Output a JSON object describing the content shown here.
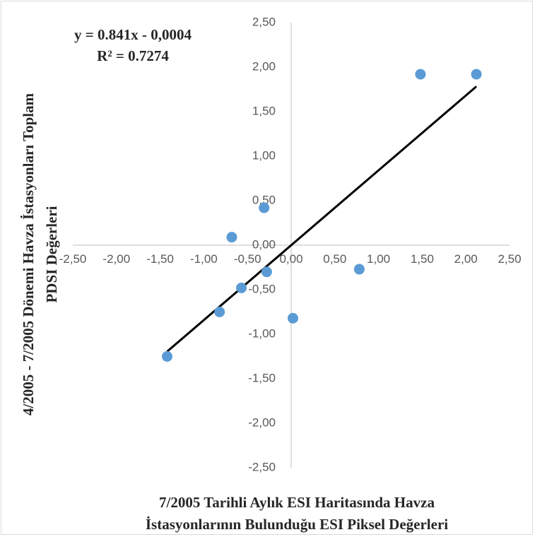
{
  "chart_data": {
    "type": "scatter",
    "xlabel_lines": [
      "7/2005 Tarihli Aylık ESI Haritasında Havza",
      "İstasyonlarının Bulunduğu ESI Piksel Değerleri"
    ],
    "ylabel_lines": [
      "4/2005 - 7/2005 Dönemi Havza İstasyonları Toplam",
      "PDSI Değerleri"
    ],
    "xlim": [
      -2.5,
      2.5
    ],
    "ylim": [
      -2.5,
      2.5
    ],
    "x_tick_labels": [
      "-2,50",
      "-2,00",
      "-1,50",
      "-1,00",
      "-0,50",
      "0,00",
      "0,50",
      "1,00",
      "1,50",
      "2,00",
      "2,50"
    ],
    "y_tick_labels": [
      "2,50",
      "2,00",
      "1,50",
      "1,00",
      "0,50",
      "0,00",
      "-0,50",
      "-1,00",
      "-1,50",
      "-2,00",
      "-2,50"
    ],
    "points": [
      {
        "x": -1.42,
        "y": -1.25
      },
      {
        "x": -0.82,
        "y": -0.75
      },
      {
        "x": -0.57,
        "y": -0.48
      },
      {
        "x": -0.28,
        "y": -0.3
      },
      {
        "x": -0.68,
        "y": 0.09
      },
      {
        "x": -0.31,
        "y": 0.42
      },
      {
        "x": 0.02,
        "y": -0.82
      },
      {
        "x": 0.78,
        "y": -0.27
      },
      {
        "x": 1.48,
        "y": 1.92
      },
      {
        "x": 2.12,
        "y": 1.92
      }
    ],
    "trendline": {
      "slope": 0.841,
      "intercept": -0.0004,
      "x_range": [
        -1.42,
        2.12
      ],
      "equation": "y = 0.841x - 0,0004",
      "r_squared": "R² = 0.7274"
    },
    "grid": false,
    "legend": "none",
    "colors": {
      "marker": "#5b9bd5",
      "trendline": "#000000",
      "axis": "#bfbfbf"
    }
  }
}
